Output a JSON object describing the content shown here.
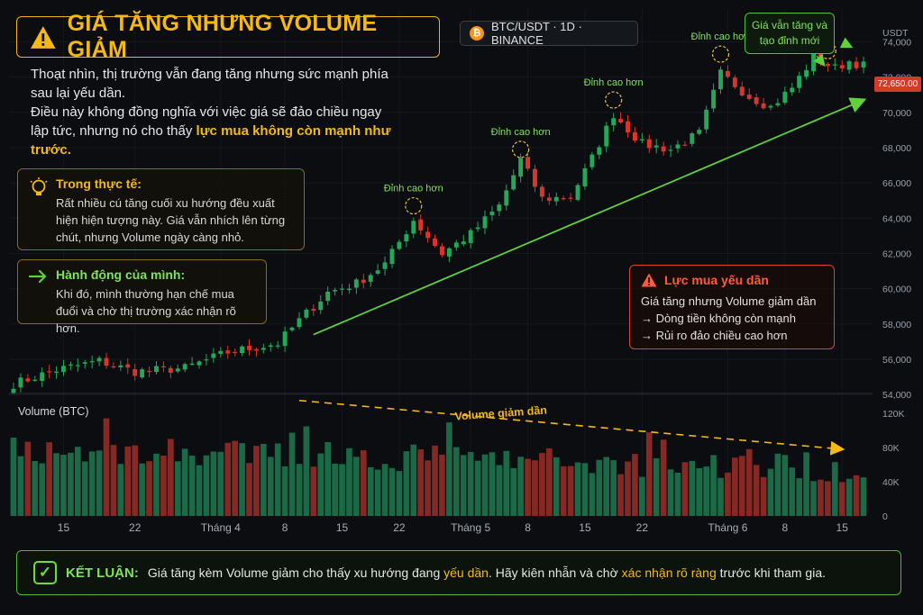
{
  "header": {
    "title": "GIÁ TĂNG NHƯNG VOLUME GIẢM",
    "pair": "BTC/USDT · 1D · BINANCE"
  },
  "intro": {
    "p1": "Thoạt nhìn, thị trường vẫn đang tăng nhưng sức mạnh phía sau lại yếu dần.",
    "p2a": "Điều này không đồng nghĩa với việc giá sẽ đảo chiều ngay lập tức, nhưng nó cho thấy ",
    "p2b": "lực mua không còn mạnh như trước."
  },
  "note_reality": {
    "title": "Trong thực tế:",
    "body": "Rất nhiều cú tăng cuối xu hướng đều xuất hiện hiện tượng này. Giá vẫn nhích lên từng chút, nhưng Volume ngày càng nhỏ."
  },
  "note_action": {
    "title": "Hành động của mình:",
    "body": "Khi đó, mình thường hạn chế mua đuổi và chờ thị trường xác nhận rõ hơn."
  },
  "callout_top": "Giá vẫn tăng và tạo đỉnh mới",
  "warning": {
    "title": "Lực mua yếu dần",
    "line1": "Giá tăng nhưng Volume giảm dần",
    "line2": "→ Dòng tiền không còn mạnh",
    "line3": "→ Rủi ro đảo chiều cao hơn"
  },
  "conclusion": {
    "label": "KẾT LUẬN:",
    "t1": "Giá tăng kèm Volume giảm cho thấy xu hướng đang ",
    "t2": "yếu dần",
    "t3": ". Hãy kiên nhẫn và chờ ",
    "t4": "xác nhận rõ ràng",
    "t5": " trước khi tham gia."
  },
  "colors": {
    "up": "#26a65b",
    "down": "#d9352a",
    "accent": "#f5b915",
    "trend": "#5fd13a"
  },
  "chart_data": {
    "type": "candlestick",
    "price_unit_label": "USDT",
    "last_price_label": "72,650.00",
    "ylim": [
      53500,
      75500
    ],
    "y_ticks": [
      54000,
      56000,
      58000,
      60000,
      62000,
      64000,
      66000,
      68000,
      70000,
      72000,
      74000
    ],
    "y_tick_labels": [
      "54,000",
      "56,000",
      "58,000",
      "60,000",
      "62,000",
      "64,000",
      "66,000",
      "68,000",
      "70,000",
      "72,000",
      "74,000"
    ],
    "candle_count": 120,
    "x_tick_labels": [
      {
        "i": 7,
        "label": "15"
      },
      {
        "i": 17,
        "label": "22"
      },
      {
        "i": 29,
        "label": "Tháng 4"
      },
      {
        "i": 38,
        "label": "8"
      },
      {
        "i": 46,
        "label": "15"
      },
      {
        "i": 54,
        "label": "22"
      },
      {
        "i": 64,
        "label": "Tháng 5"
      },
      {
        "i": 72,
        "label": "8"
      },
      {
        "i": 80,
        "label": "15"
      },
      {
        "i": 88,
        "label": "22"
      },
      {
        "i": 100,
        "label": "Tháng 6"
      },
      {
        "i": 108,
        "label": "8"
      },
      {
        "i": 116,
        "label": "15"
      }
    ],
    "swing_highs": [
      {
        "i": 56,
        "price": 64700,
        "label": "Đỉnh cao hơn"
      },
      {
        "i": 71,
        "price": 67900,
        "label": "Đỉnh cao hơn"
      },
      {
        "i": 84,
        "price": 70700,
        "label": "Đỉnh cao hơn"
      },
      {
        "i": 99,
        "price": 73300,
        "label": "Đỉnh cao hơn"
      },
      {
        "i": 114,
        "price": 73500,
        "label": ""
      }
    ],
    "trendline": {
      "from": {
        "i": 42,
        "price": 57400
      },
      "to": {
        "i": 119,
        "price": 70700
      }
    },
    "volume": {
      "title": "Volume (BTC)",
      "ylim": [
        0,
        140000
      ],
      "y_ticks": [
        0,
        40000,
        80000,
        120000
      ],
      "y_tick_labels": [
        "0",
        "40K",
        "80K",
        "120K"
      ],
      "trend_label": "Volume giảm dần",
      "trend_from": {
        "i": 40,
        "value": 135000
      },
      "trend_to": {
        "i": 116,
        "value": 78000
      }
    }
  }
}
